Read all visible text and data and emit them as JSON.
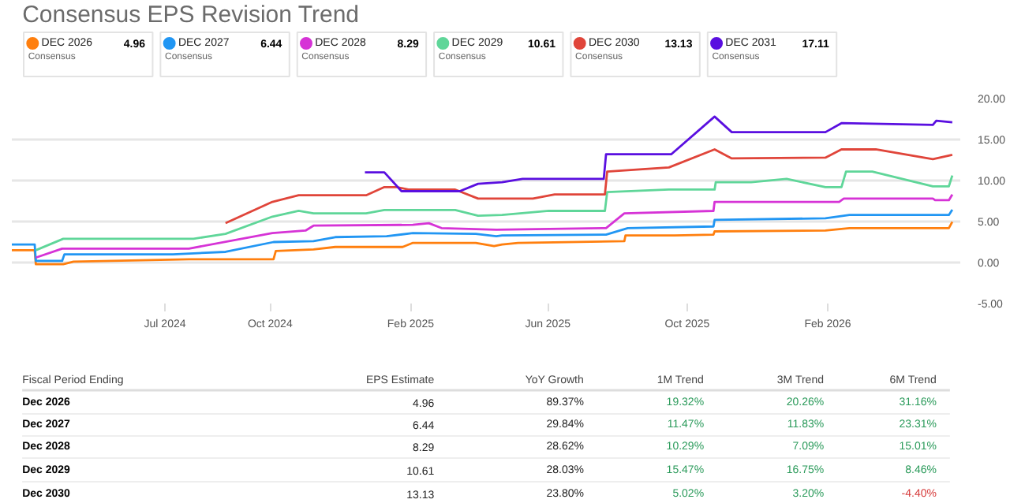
{
  "chart_data": [
    {
      "type": "line",
      "title": "Consensus EPS Revision Trend",
      "legend": "top",
      "grid": "y",
      "xlim": [
        "2024-02-18",
        "2026-05-28"
      ],
      "ylim": [
        -5,
        20
      ],
      "xticks": [
        {
          "value": "2024-07-01",
          "label": "Jul 2024"
        },
        {
          "value": "2024-10-01",
          "label": "Oct 2024"
        },
        {
          "value": "2025-02-01",
          "label": "Feb 2025"
        },
        {
          "value": "2025-06-01",
          "label": "Jun 2025"
        },
        {
          "value": "2025-10-01",
          "label": "Oct 2025"
        },
        {
          "value": "2026-02-01",
          "label": "Feb 2026"
        }
      ],
      "yticks": [
        {
          "value": -5,
          "label": "-5.00"
        },
        {
          "value": 0,
          "label": "0.00"
        },
        {
          "value": 5,
          "label": "5.00"
        },
        {
          "value": 10,
          "label": "10.00"
        },
        {
          "value": 15,
          "label": "15.00"
        },
        {
          "value": 20,
          "label": "20.00"
        }
      ],
      "annotations": [
        "4.96",
        "Consensus",
        "6.44",
        "Consensus",
        "8.29",
        "Consensus",
        "10.61",
        "Consensus",
        "13.13",
        "Consensus",
        "17.11",
        "Consensus"
      ],
      "series": [
        {
          "name": "DEC 2026",
          "color": "#ff7f0e",
          "x": [
            "2024-02-18",
            "2024-03-09",
            "2024-03-10",
            "2024-04-03",
            "2024-04-12",
            "2024-07-22",
            "2024-10-04",
            "2024-10-06",
            "2024-11-08",
            "2024-11-27",
            "2025-01-25",
            "2025-02-03",
            "2025-03-30",
            "2025-04-15",
            "2025-04-22",
            "2025-05-06",
            "2025-08-07",
            "2025-08-08",
            "2025-09-20",
            "2025-10-24",
            "2025-10-25",
            "2026-01-30",
            "2026-02-20",
            "2026-05-18",
            "2026-05-21"
          ],
          "values": [
            1.5,
            1.5,
            -0.2,
            -0.2,
            0.1,
            0.4,
            0.4,
            1.4,
            1.6,
            1.9,
            1.9,
            2.4,
            2.4,
            2.0,
            2.2,
            2.4,
            2.6,
            3.3,
            3.3,
            3.4,
            3.8,
            3.9,
            4.2,
            4.2,
            4.96
          ]
        },
        {
          "name": "DEC 2027",
          "color": "#2196f3",
          "x": [
            "2024-02-18",
            "2024-03-09",
            "2024-03-10",
            "2024-04-02",
            "2024-04-04",
            "2024-07-08",
            "2024-08-23",
            "2024-10-04",
            "2024-11-08",
            "2024-11-27",
            "2025-01-11",
            "2025-02-03",
            "2025-03-30",
            "2025-04-17",
            "2025-04-22",
            "2025-07-22",
            "2025-08-10",
            "2025-10-24",
            "2025-10-25",
            "2026-01-30",
            "2026-02-20",
            "2026-05-18",
            "2026-05-21"
          ],
          "values": [
            2.2,
            2.2,
            0.2,
            0.2,
            1.0,
            1.0,
            1.3,
            2.5,
            2.6,
            3.1,
            3.2,
            3.6,
            3.5,
            3.2,
            3.3,
            3.4,
            4.2,
            4.4,
            5.2,
            5.4,
            5.8,
            5.8,
            6.44
          ]
        },
        {
          "name": "DEC 2028",
          "color": "#d633d6",
          "x": [
            "2024-03-10",
            "2024-04-02",
            "2024-07-22",
            "2024-10-03",
            "2024-11-01",
            "2024-11-08",
            "2025-02-03",
            "2025-02-17",
            "2025-02-28",
            "2025-04-17",
            "2025-07-22",
            "2025-08-07",
            "2025-10-24",
            "2025-10-25",
            "2026-02-11",
            "2026-02-15",
            "2026-05-04",
            "2026-05-06",
            "2026-05-18",
            "2026-05-21"
          ],
          "values": [
            0.6,
            1.7,
            1.7,
            3.6,
            3.9,
            4.5,
            4.6,
            4.8,
            4.2,
            4.0,
            4.2,
            6.0,
            6.3,
            7.4,
            7.4,
            7.8,
            7.8,
            7.6,
            7.6,
            8.29
          ]
        },
        {
          "name": "DEC 2029",
          "color": "#5fd699",
          "x": [
            "2024-03-10",
            "2024-04-03",
            "2024-07-26",
            "2024-08-23",
            "2024-10-03",
            "2024-10-26",
            "2024-11-08",
            "2024-12-24",
            "2025-01-09",
            "2025-03-12",
            "2025-04-01",
            "2025-04-22",
            "2025-06-02",
            "2025-07-21",
            "2025-07-23",
            "2025-09-15",
            "2025-10-25",
            "2025-10-26",
            "2025-11-26",
            "2025-12-27",
            "2026-01-30",
            "2026-02-13",
            "2026-02-17",
            "2026-03-12",
            "2026-05-04",
            "2026-05-18",
            "2026-05-21"
          ],
          "values": [
            1.5,
            2.9,
            2.9,
            3.5,
            5.6,
            6.3,
            6.0,
            6.0,
            6.4,
            6.4,
            5.7,
            5.8,
            6.3,
            6.3,
            8.6,
            8.9,
            8.9,
            9.8,
            9.8,
            10.2,
            9.2,
            9.2,
            11.1,
            11.1,
            9.3,
            9.3,
            10.61
          ]
        },
        {
          "name": "DEC 2030",
          "color": "#e0453a",
          "x": [
            "2024-08-23",
            "2024-10-03",
            "2024-10-26",
            "2024-12-24",
            "2025-01-09",
            "2025-01-20",
            "2025-01-30",
            "2025-03-12",
            "2025-04-01",
            "2025-05-19",
            "2025-06-07",
            "2025-07-21",
            "2025-07-23",
            "2025-09-15",
            "2025-10-25",
            "2025-11-09",
            "2026-01-30",
            "2026-02-13",
            "2026-03-15",
            "2026-05-04",
            "2026-05-21"
          ],
          "values": [
            4.8,
            7.4,
            8.2,
            8.2,
            9.2,
            9.2,
            8.9,
            8.9,
            7.8,
            7.8,
            8.3,
            8.3,
            11.1,
            11.6,
            13.8,
            12.7,
            12.8,
            13.8,
            13.8,
            12.6,
            13.13
          ]
        },
        {
          "name": "DEC 2031",
          "color": "#5a0fe0",
          "x": [
            "2024-12-23",
            "2025-01-09",
            "2025-01-24",
            "2025-03-16",
            "2025-04-01",
            "2025-04-22",
            "2025-05-10",
            "2025-07-20",
            "2025-07-22",
            "2025-09-17",
            "2025-10-25",
            "2025-11-09",
            "2026-01-30",
            "2026-02-13",
            "2026-05-04",
            "2026-05-07",
            "2026-05-21"
          ],
          "values": [
            11.0,
            11.0,
            8.7,
            8.7,
            9.6,
            9.8,
            10.2,
            10.2,
            13.2,
            13.2,
            17.8,
            15.9,
            15.9,
            17.0,
            16.8,
            17.3,
            17.11
          ]
        }
      ]
    },
    {
      "type": "other",
      "ylabel": "Fiscal Period Ending",
      "categories": [
        "Dec 2026",
        "Dec 2027",
        "Dec 2028",
        "Dec 2029",
        "Dec 2030"
      ],
      "series": [
        {
          "name": "EPS Estimate",
          "values": [
            4.96,
            6.44,
            8.29,
            10.61,
            13.13
          ],
          "value_labels": [
            "4.96",
            "6.44",
            "8.29",
            "10.61",
            "13.13"
          ],
          "colors": [
            "#222222",
            "#222222",
            "#222222",
            "#222222",
            "#222222"
          ]
        },
        {
          "name": "YoY Growth",
          "values": [
            89.37,
            29.84,
            28.62,
            28.03,
            23.8
          ],
          "value_labels": [
            "89.37%",
            "29.84%",
            "28.62%",
            "28.03%",
            "23.80%"
          ],
          "colors": [
            "#222222",
            "#222222",
            "#222222",
            "#222222",
            "#222222"
          ]
        },
        {
          "name": "1M Trend",
          "values": [
            19.32,
            11.47,
            10.29,
            15.47,
            5.02
          ],
          "value_labels": [
            "19.32%",
            "11.47%",
            "10.29%",
            "15.47%",
            "5.02%"
          ],
          "colors": [
            "#2a9a5a",
            "#2a9a5a",
            "#2a9a5a",
            "#2a9a5a",
            "#2a9a5a"
          ]
        },
        {
          "name": "3M Trend",
          "values": [
            20.26,
            11.83,
            7.09,
            16.75,
            3.2
          ],
          "value_labels": [
            "20.26%",
            "11.83%",
            "7.09%",
            "16.75%",
            "3.20%"
          ],
          "colors": [
            "#2a9a5a",
            "#2a9a5a",
            "#2a9a5a",
            "#2a9a5a",
            "#2a9a5a"
          ]
        },
        {
          "name": "6M Trend",
          "values": [
            31.16,
            23.31,
            15.01,
            8.46,
            -4.4
          ],
          "value_labels": [
            "31.16%",
            "23.31%",
            "15.01%",
            "8.46%",
            "-4.40%"
          ],
          "colors": [
            "#2a9a5a",
            "#2a9a5a",
            "#2a9a5a",
            "#2a9a5a",
            "#d63b3b"
          ]
        }
      ]
    }
  ]
}
